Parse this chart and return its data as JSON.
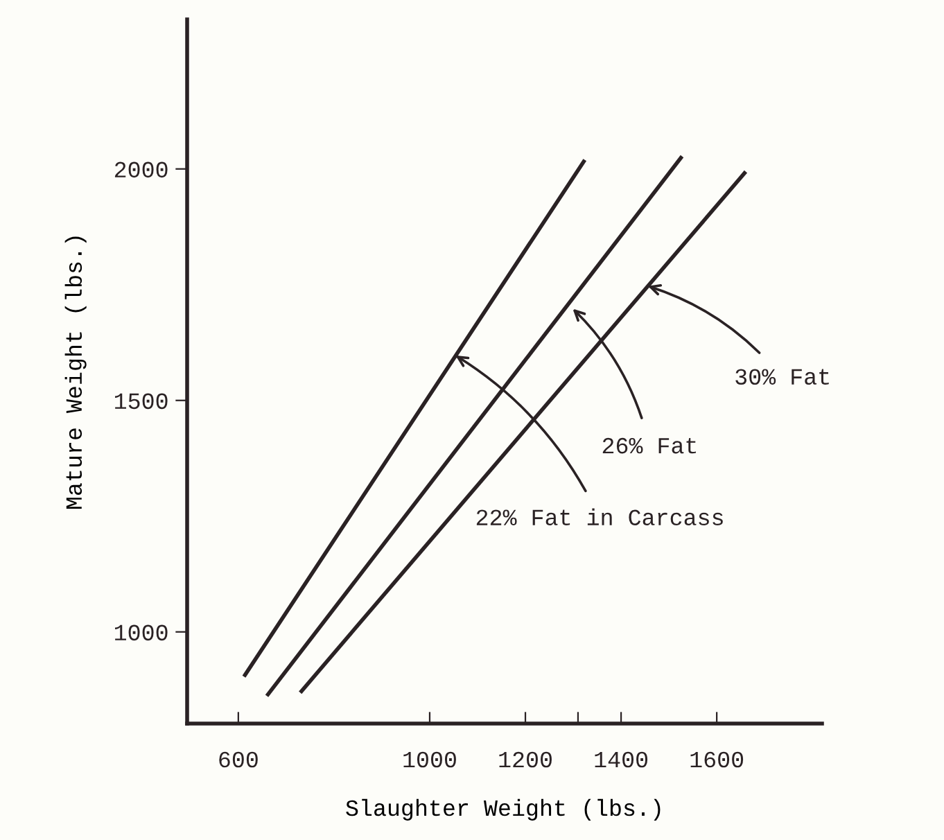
{
  "chart_data": {
    "type": "line",
    "xlabel": "Slaughter Weight (lbs.)",
    "ylabel": "Mature Weight (lbs.)",
    "series": [
      {
        "color": "#2a2224",
        "x": [
          614,
          1322
        ],
        "values": [
          907,
          2016
        ]
      },
      {
        "color": "#2a2224",
        "x": [
          662,
          1525
        ],
        "values": [
          865,
          2024
        ]
      },
      {
        "color": "#2a2224",
        "x": [
          732,
          1658
        ],
        "values": [
          872,
          1991
        ]
      }
    ],
    "xlim": [
      493,
      1820
    ],
    "ylim": [
      802,
      2323
    ],
    "xticks": [
      600,
      1000,
      1200,
      {
        "value": 1310,
        "label": null
      },
      1400,
      1600
    ],
    "yticks": [
      1000,
      1500,
      2000
    ],
    "annotations": [
      {
        "text": "30% Fat",
        "x": 1456,
        "y": 1747
      },
      {
        "text": "26% Fat",
        "x": 1299,
        "y": 1698
      },
      {
        "text": "22% Fat in Carcass",
        "x": 1054,
        "y": 1597
      }
    ],
    "grid": false,
    "legend": false,
    "marker": "none",
    "line_style": "solid"
  }
}
